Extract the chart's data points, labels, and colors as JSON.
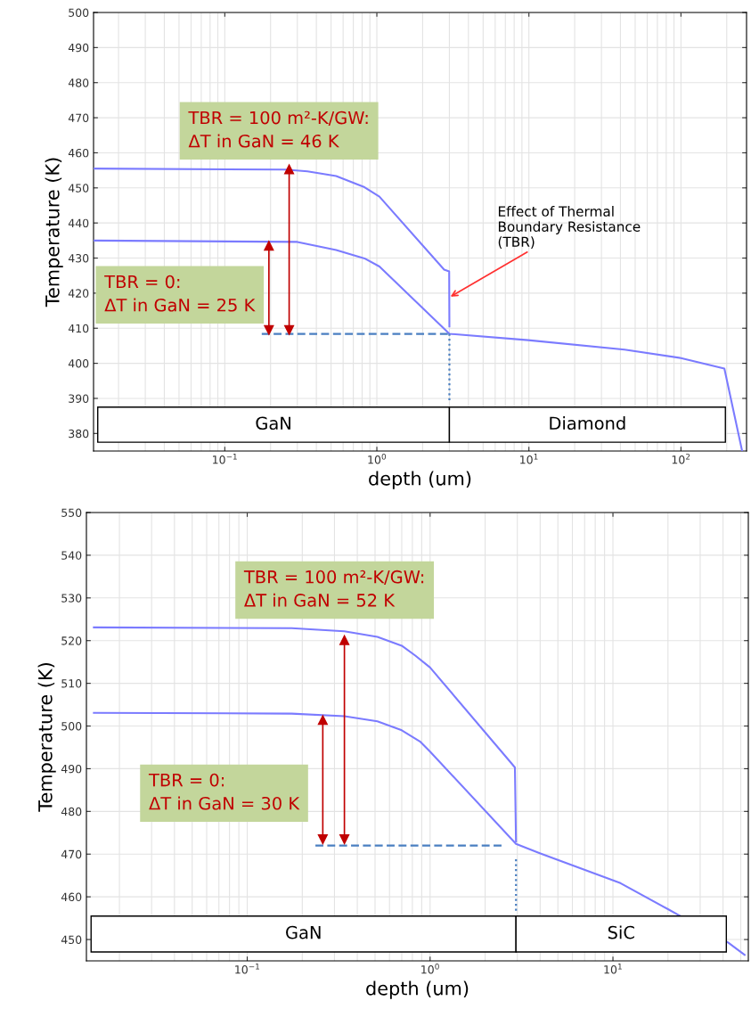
{
  "chart_data": [
    {
      "type": "line",
      "xlabel": "depth (um)",
      "ylabel": "Temperature (K)",
      "log": "x",
      "grid": true,
      "marker": "none",
      "line_style": "solid",
      "xlim": [
        0.0137,
        270
      ],
      "ylim": [
        375,
        500
      ],
      "xticks": [
        {
          "value": 0.1,
          "label": "10$^{−1}$"
        },
        {
          "value": 1,
          "label": "10$^{0}$"
        },
        {
          "value": 10,
          "label": "10$^{1}$"
        },
        {
          "value": 100,
          "label": "10$^{2}$"
        }
      ],
      "yticks": [
        380,
        390,
        400,
        410,
        420,
        430,
        440,
        450,
        460,
        470,
        480,
        490,
        500
      ],
      "series": [
        {
          "color": "#7b7bff",
          "x": [
            0.0137,
            0.25,
            0.35,
            0.54,
            0.83,
            1.04,
            2.77,
            2.99,
            3.0
          ],
          "values": [
            455.5,
            455.2,
            454.7,
            453.4,
            450.2,
            447.5,
            426.7,
            426.2,
            410.5
          ]
        },
        {
          "color": "#7b7bff",
          "x": [
            0.0137,
            0.3,
            0.54,
            0.83,
            1.04,
            3.0,
            9.9,
            42.6,
            100,
            193,
            252
          ],
          "values": [
            435,
            434.6,
            432.3,
            429.9,
            427.6,
            408.4,
            406.6,
            403.9,
            401.5,
            398.5,
            375.2
          ]
        },
        {
          "color": "#4a7fc1",
          "line_style": "dashed",
          "x": [
            0.175,
            3.0
          ],
          "values": [
            408.4,
            408.4
          ]
        },
        {
          "color": "#4a7fc1",
          "line_style": "dotted",
          "x": [
            3.0,
            3.0
          ],
          "values": [
            408.4,
            389
          ]
        },
        {
          "color": "#c00000",
          "marker": "triangle",
          "x": [
            0.195,
            0.195
          ],
          "values": [
            409.5,
            433.5
          ]
        },
        {
          "color": "#c00000",
          "marker": "triangle",
          "x": [
            0.265,
            0.265
          ],
          "values": [
            409.5,
            455.3
          ]
        }
      ],
      "bands": [
        {
          "axis": "x",
          "from": 0.0146,
          "to": 3.0,
          "label": "GaN",
          "color": "#ffffff"
        },
        {
          "axis": "x",
          "from": 3.0,
          "to": 196,
          "label": "Diamond",
          "color": "#ffffff"
        }
      ],
      "annotations": [
        "TBR = 100 m²-K/GW:\nΔT in GaN = 46 K",
        "TBR = 0:\nΔT in GaN = 25 K",
        {
          "text": "Effect of Thermal\nBoundary Resistance\n(TBR)",
          "x": 3.05,
          "y": 419
        }
      ]
    },
    {
      "type": "line",
      "xlabel": "depth (um)",
      "ylabel": "Temperature (K)",
      "log": "x",
      "grid": true,
      "marker": "none",
      "line_style": "solid",
      "xlim": [
        0.0132,
        55
      ],
      "ylim": [
        445,
        550
      ],
      "xticks": [
        {
          "value": 0.1,
          "label": "10$^{−1}$"
        },
        {
          "value": 1,
          "label": "10$^{0}$"
        },
        {
          "value": 10,
          "label": "10$^{1}$"
        }
      ],
      "yticks": [
        450,
        460,
        470,
        480,
        490,
        500,
        510,
        520,
        530,
        540,
        550
      ],
      "series": [
        {
          "color": "#7b7bff",
          "x": [
            0.0145,
            0.175,
            0.34,
            0.515,
            0.7,
            0.83,
            1.0,
            2.77,
            2.91,
            2.95
          ],
          "values": [
            523.1,
            522.9,
            522.2,
            520.9,
            518.8,
            516.5,
            513.7,
            491.4,
            490.3,
            473
          ]
        },
        {
          "color": "#7b7bff",
          "x": [
            0.0145,
            0.175,
            0.34,
            0.515,
            0.7,
            0.88,
            1.0,
            2.95,
            3.98,
            11,
            20,
            42.6,
            52.5
          ],
          "values": [
            503.1,
            502.9,
            502.3,
            501.1,
            499,
            496.4,
            494,
            472.4,
            470.2,
            463.2,
            457.1,
            449.3,
            446.4
          ]
        },
        {
          "color": "#4a7fc1",
          "line_style": "dashed",
          "x": [
            0.236,
            2.54
          ],
          "values": [
            472,
            472
          ]
        },
        {
          "color": "#4a7fc1",
          "line_style": "dotted",
          "x": [
            2.95,
            2.95
          ],
          "values": [
            468.8,
            456.7
          ]
        },
        {
          "color": "#c00000",
          "marker": "triangle",
          "x": [
            0.259,
            0.259
          ],
          "values": [
            473.5,
            501.4
          ]
        },
        {
          "color": "#c00000",
          "marker": "triangle",
          "x": [
            0.34,
            0.34
          ],
          "values": [
            473.5,
            520.1
          ]
        }
      ],
      "bands": [
        {
          "axis": "x",
          "from": 0.014,
          "to": 2.95,
          "label": "GaN",
          "color": "#ffffff"
        },
        {
          "axis": "x",
          "from": 2.95,
          "to": 41.7,
          "label": "SiC",
          "color": "#ffffff"
        }
      ],
      "annotations": [
        "TBR = 100 m²-K/GW:\nΔT in GaN = 52 K",
        "TBR = 0:\nΔT in GaN = 30 K"
      ]
    }
  ]
}
